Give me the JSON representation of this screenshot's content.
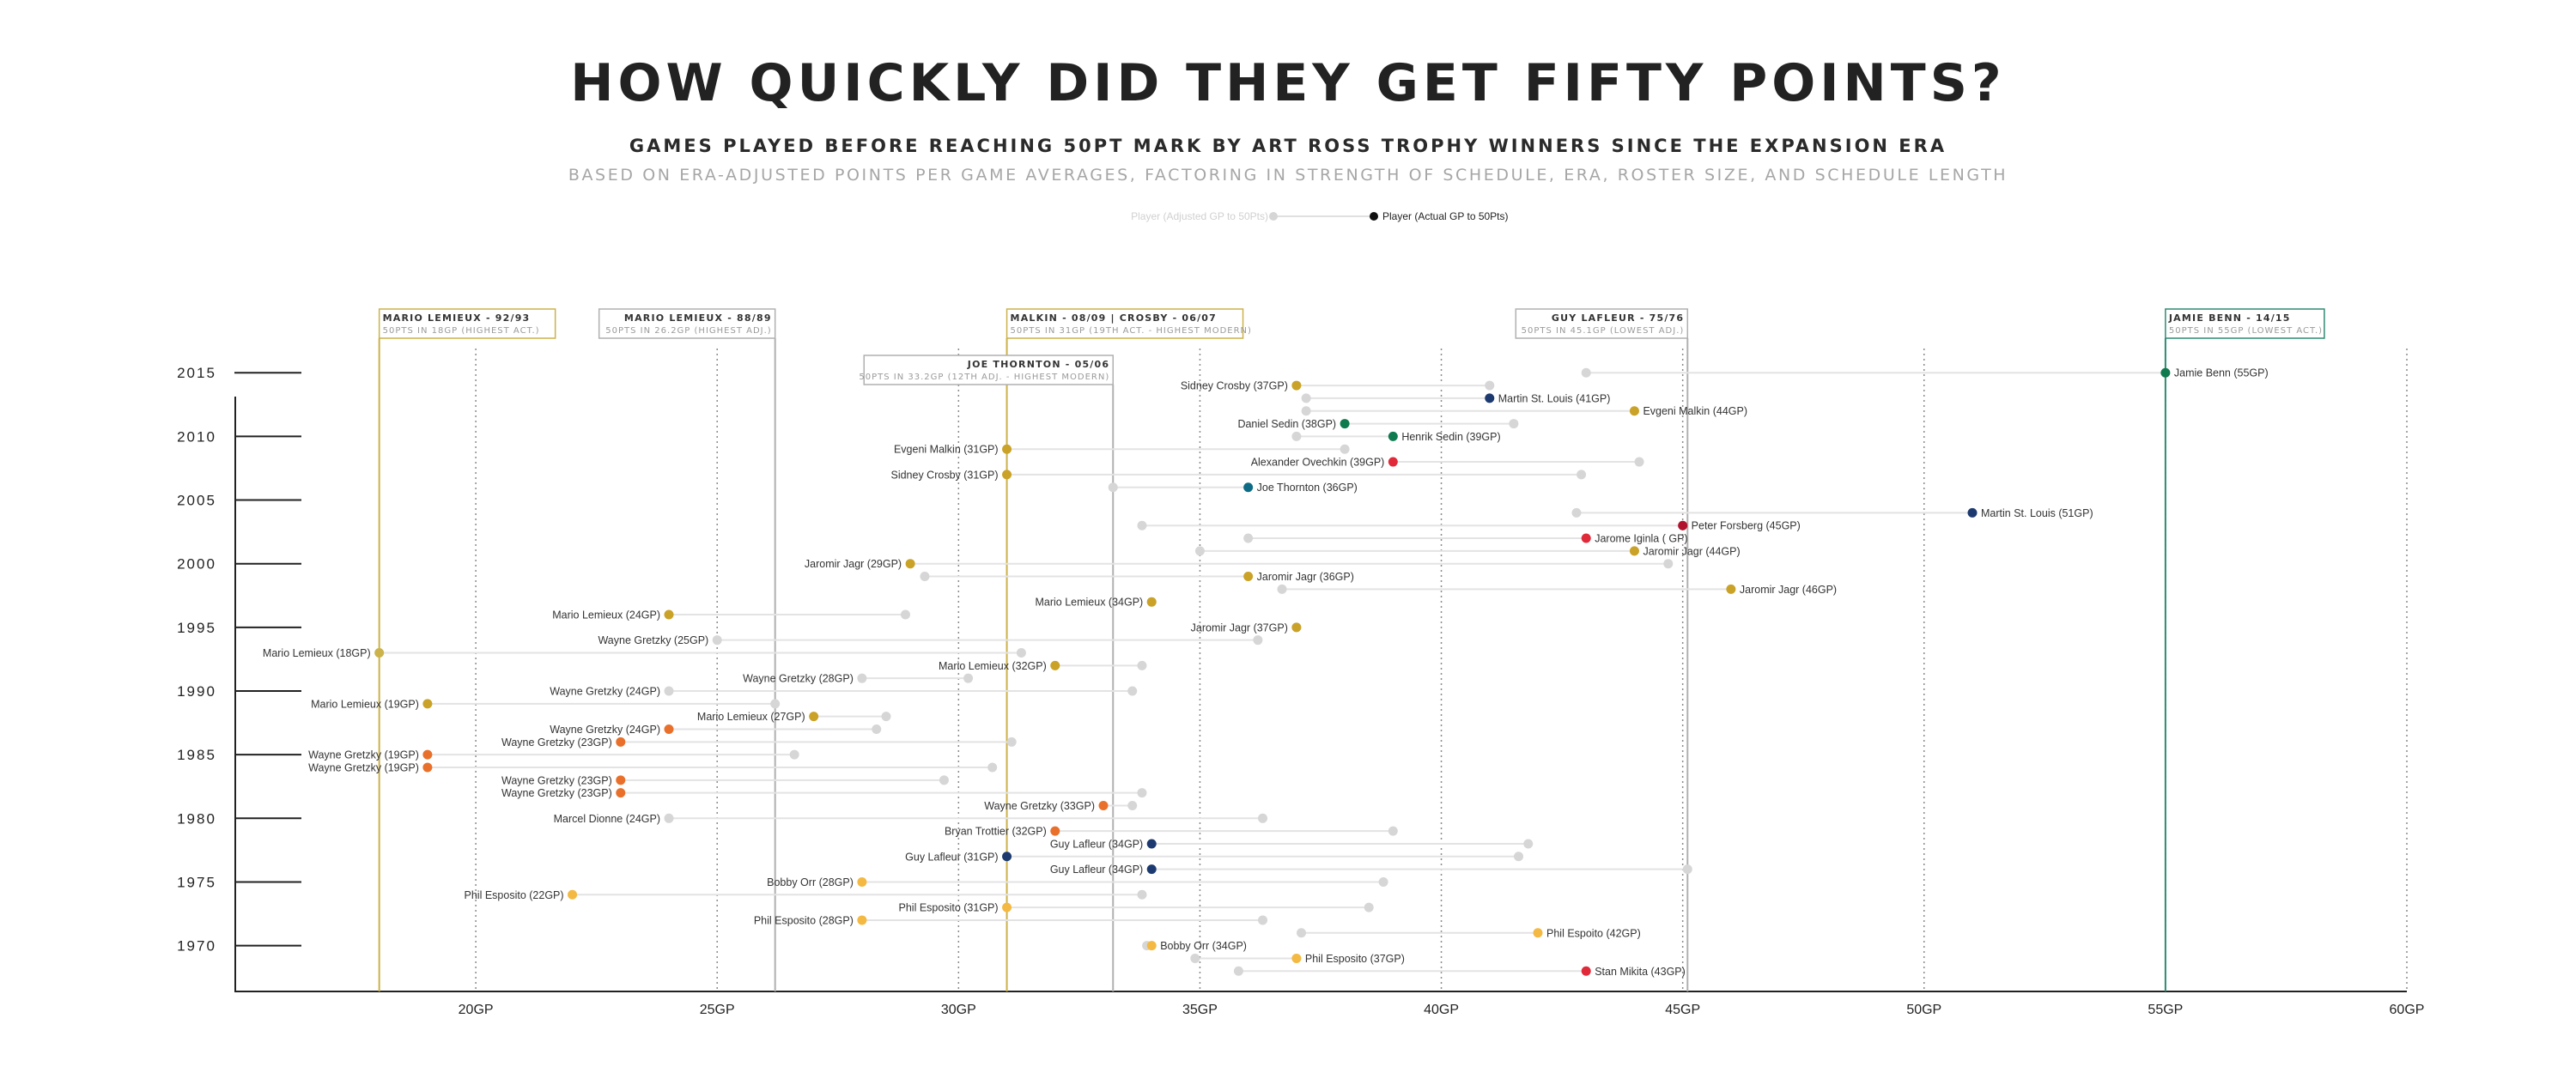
{
  "header": {
    "title": "HOW QUICKLY DID THEY GET FIFTY POINTS?",
    "subtitle": "GAMES PLAYED BEFORE REACHING 50PT MARK BY ART ROSS TROPHY WINNERS SINCE THE EXPANSION ERA",
    "subtitle2": "BASED ON ERA-ADJUSTED POINTS PER GAME AVERAGES, FACTORING IN STRENGTH OF SCHEDULE, ERA, ROSTER SIZE, AND SCHEDULE LENGTH"
  },
  "legend": {
    "adjusted_label": "Player (Adjusted GP to 50Pts)",
    "actual_label": "Player (Actual GP to 50Pts)"
  },
  "colors": {
    "gold": "#cbb24a",
    "dark_gold": "#c9a227",
    "yellow": "#f3b942",
    "orange": "#e8702a",
    "navy": "#1d3a70",
    "green": "#0f7a4e",
    "red": "#e02a3a",
    "crimson": "#b1122e",
    "teal": "#0e6b86",
    "teal_line": "#2f8a72",
    "gray_marker": "#d6d6d6",
    "adj_line_gray": "#b0b0b0"
  },
  "annotations": [
    {
      "title": "MARIO LEMIEUX - 92/93",
      "sub": "50PTS IN 18GP (HIGHEST ACT.)",
      "gp": 18,
      "color": "gold"
    },
    {
      "title": "MARIO LEMIEUX - 88/89",
      "sub": "50PTS IN 26.2GP (HIGHEST ADJ.)",
      "gp": 26.2,
      "color": "adj_line_gray"
    },
    {
      "title": "MALKIN - 08/09 | CROSBY - 06/07",
      "sub": "50PTS IN 31GP (19TH ACT. - HIGHEST MODERN)",
      "gp": 31,
      "color": "gold"
    },
    {
      "title": "JOE THORNTON - 05/06",
      "sub": "50PTS IN 33.2GP (12TH ADJ. - HIGHEST MODERN)",
      "gp": 33.2,
      "color": "adj_line_gray"
    },
    {
      "title": "GUY LAFLEUR - 75/76",
      "sub": "50PTS IN 45.1GP (LOWEST ADJ.)",
      "gp": 45.1,
      "color": "adj_line_gray"
    },
    {
      "title": "JAMIE BENN - 14/15",
      "sub": "50PTS IN 55GP (LOWEST ACT.)",
      "gp": 55,
      "color": "teal_line"
    }
  ],
  "chart_data": {
    "type": "scatter",
    "title": "HOW QUICKLY DID THEY GET FIFTY POINTS?",
    "xlabel": "",
    "ylabel": "",
    "xlim": [
      15,
      60
    ],
    "ylim": [
      1966.4,
      2016.5
    ],
    "x_ticks": [
      20,
      25,
      30,
      35,
      40,
      45,
      50,
      55,
      60
    ],
    "x_tick_labels": [
      "20GP",
      "25GP",
      "30GP",
      "35GP",
      "40GP",
      "45GP",
      "50GP",
      "55GP",
      "60GP"
    ],
    "y_ticks": [
      2015,
      2010,
      2005,
      2000,
      1995,
      1990,
      1985,
      1980,
      1975,
      1970
    ],
    "y_tick_labels": [
      "2015",
      "2010",
      "2005",
      "2000",
      "1995",
      "1990",
      "1985",
      "1980",
      "1975",
      "1970"
    ],
    "grid": "vertical dotted at each x tick",
    "series": [
      {
        "name": "Player (Actual GP to 50Pts)",
        "unit": "GP"
      },
      {
        "name": "Player (Adjusted GP to 50Pts)",
        "unit": "GP"
      }
    ],
    "points": [
      {
        "label": "Jamie Benn (55GP)",
        "year": 2015,
        "actual": 55,
        "adjusted": 43,
        "color": "green"
      },
      {
        "label": "Sidney Crosby (37GP)",
        "year": 2014,
        "actual": 37,
        "adjusted": 41,
        "color": "dark_gold"
      },
      {
        "label": "Martin St. Louis (41GP)",
        "year": 2013,
        "actual": 41,
        "adjusted": 37.2,
        "color": "navy"
      },
      {
        "label": "Evgeni Malkin (44GP)",
        "year": 2012,
        "actual": 44,
        "adjusted": 37.2,
        "color": "dark_gold"
      },
      {
        "label": "Daniel Sedin (38GP)",
        "year": 2011,
        "actual": 38,
        "adjusted": 41.5,
        "color": "green"
      },
      {
        "label": "Henrik Sedin (39GP)",
        "year": 2010,
        "actual": 39,
        "adjusted": 37,
        "color": "green"
      },
      {
        "label": "Evgeni Malkin (31GP)",
        "year": 2009,
        "actual": 31,
        "adjusted": 38,
        "color": "dark_gold"
      },
      {
        "label": "Alexander Ovechkin (39GP)",
        "year": 2008,
        "actual": 39,
        "adjusted": 44.1,
        "color": "red"
      },
      {
        "label": "Sidney Crosby (31GP)",
        "year": 2007,
        "actual": 31,
        "adjusted": 42.9,
        "color": "dark_gold"
      },
      {
        "label": "Joe Thornton (36GP)",
        "year": 2006,
        "actual": 36,
        "adjusted": 33.2,
        "color": "teal"
      },
      {
        "label": "Martin St. Louis (51GP)",
        "year": 2004,
        "actual": 51,
        "adjusted": 42.8,
        "color": "navy"
      },
      {
        "label": "Peter Forsberg (45GP)",
        "year": 2003,
        "actual": 45,
        "adjusted": 33.8,
        "color": "crimson"
      },
      {
        "label": "Jarome Iginla ( GP)",
        "year": 2002,
        "actual": 43,
        "adjusted": 36,
        "color": "red"
      },
      {
        "label": "Jaromir Jagr (44GP)",
        "year": 2001,
        "actual": 44,
        "adjusted": 35,
        "color": "dark_gold"
      },
      {
        "label": "Jaromir Jagr (29GP)",
        "year": 2000,
        "actual": 29,
        "adjusted": 44.7,
        "color": "dark_gold"
      },
      {
        "label": "Jaromir Jagr (36GP)",
        "year": 1999,
        "actual": 36,
        "adjusted": 29.3,
        "color": "dark_gold"
      },
      {
        "label": "Jaromir Jagr (46GP)",
        "year": 1998,
        "actual": 46,
        "adjusted": 36.7,
        "color": "dark_gold"
      },
      {
        "label": "Mario Lemieux (34GP)",
        "year": 1997,
        "actual": 34,
        "adjusted": 34,
        "color": "dark_gold"
      },
      {
        "label": "Mario Lemieux (24GP)",
        "year": 1996,
        "actual": 24,
        "adjusted": 28.9,
        "color": "dark_gold"
      },
      {
        "label": "Jaromir Jagr (37GP)",
        "year": 1995,
        "actual": 37,
        "adjusted": 37,
        "color": "dark_gold"
      },
      {
        "label": "Wayne Gretzky (25GP)",
        "year": 1994,
        "actual": 25,
        "adjusted": 36.2,
        "color": "gray_marker"
      },
      {
        "label": "Mario Lemieux (18GP)",
        "year": 1993,
        "actual": 18,
        "adjusted": 31.3,
        "color": "gold"
      },
      {
        "label": "Mario Lemieux (32GP)",
        "year": 1992,
        "actual": 32,
        "adjusted": 33.8,
        "color": "dark_gold"
      },
      {
        "label": "Wayne Gretzky (28GP)",
        "year": 1991,
        "actual": 28,
        "adjusted": 30.2,
        "color": "gray_marker"
      },
      {
        "label": "Wayne Gretzky (24GP)",
        "year": 1990,
        "actual": 24,
        "adjusted": 33.6,
        "color": "gray_marker"
      },
      {
        "label": "Mario Lemieux (19GP)",
        "year": 1989,
        "actual": 19,
        "adjusted": 26.2,
        "color": "dark_gold"
      },
      {
        "label": "Mario Lemieux (27GP)",
        "year": 1988,
        "actual": 27,
        "adjusted": 28.5,
        "color": "dark_gold"
      },
      {
        "label": "Wayne Gretzky (24GP)",
        "year": 1987,
        "actual": 24,
        "adjusted": 28.3,
        "color": "orange"
      },
      {
        "label": "Wayne Gretzky (23GP)",
        "year": 1986,
        "actual": 23,
        "adjusted": 31.1,
        "color": "orange"
      },
      {
        "label": "Wayne Gretzky (19GP)",
        "year": 1985,
        "actual": 19,
        "adjusted": 26.6,
        "color": "orange"
      },
      {
        "label": "Wayne Gretzky (19GP)",
        "year": 1984,
        "actual": 19,
        "adjusted": 30.7,
        "color": "orange"
      },
      {
        "label": "Wayne Gretzky (23GP)",
        "year": 1983,
        "actual": 23,
        "adjusted": 29.7,
        "color": "orange"
      },
      {
        "label": "Wayne Gretzky (23GP)",
        "year": 1982,
        "actual": 23,
        "adjusted": 33.8,
        "color": "orange"
      },
      {
        "label": "Wayne Gretzky (33GP)",
        "year": 1981,
        "actual": 33,
        "adjusted": 33.6,
        "color": "orange"
      },
      {
        "label": "Marcel Dionne (24GP)",
        "year": 1980,
        "actual": 24,
        "adjusted": 36.3,
        "color": "gray_marker"
      },
      {
        "label": "Bryan Trottier (32GP)",
        "year": 1979,
        "actual": 32,
        "adjusted": 39,
        "color": "orange"
      },
      {
        "label": "Guy Lafleur (34GP)",
        "year": 1978,
        "actual": 34,
        "adjusted": 41.8,
        "color": "navy"
      },
      {
        "label": "Guy Lafleur (31GP)",
        "year": 1977,
        "actual": 31,
        "adjusted": 41.6,
        "color": "navy"
      },
      {
        "label": "Guy Lafleur (34GP)",
        "year": 1976,
        "actual": 34,
        "adjusted": 45.1,
        "color": "navy"
      },
      {
        "label": "Bobby Orr (28GP)",
        "year": 1975,
        "actual": 28,
        "adjusted": 38.8,
        "color": "yellow"
      },
      {
        "label": "Phil Esposito (22GP)",
        "year": 1974,
        "actual": 22,
        "adjusted": 33.8,
        "color": "yellow"
      },
      {
        "label": "Phil Esposito (31GP)",
        "year": 1973,
        "actual": 31,
        "adjusted": 38.5,
        "color": "yellow"
      },
      {
        "label": "Phil Esposito (28GP)",
        "year": 1972,
        "actual": 28,
        "adjusted": 36.3,
        "color": "yellow"
      },
      {
        "label": "Phil Espoito (42GP)",
        "year": 1971,
        "actual": 42,
        "adjusted": 37.1,
        "color": "yellow"
      },
      {
        "label": "Bobby Orr (34GP)",
        "year": 1970,
        "actual": 34,
        "adjusted": 33.9,
        "color": "yellow"
      },
      {
        "label": "Phil Esposito (37GP)",
        "year": 1969,
        "actual": 37,
        "adjusted": 34.9,
        "color": "yellow"
      },
      {
        "label": "Stan Mikita (43GP)",
        "year": 1968,
        "actual": 43,
        "adjusted": 35.8,
        "color": "red"
      }
    ]
  }
}
